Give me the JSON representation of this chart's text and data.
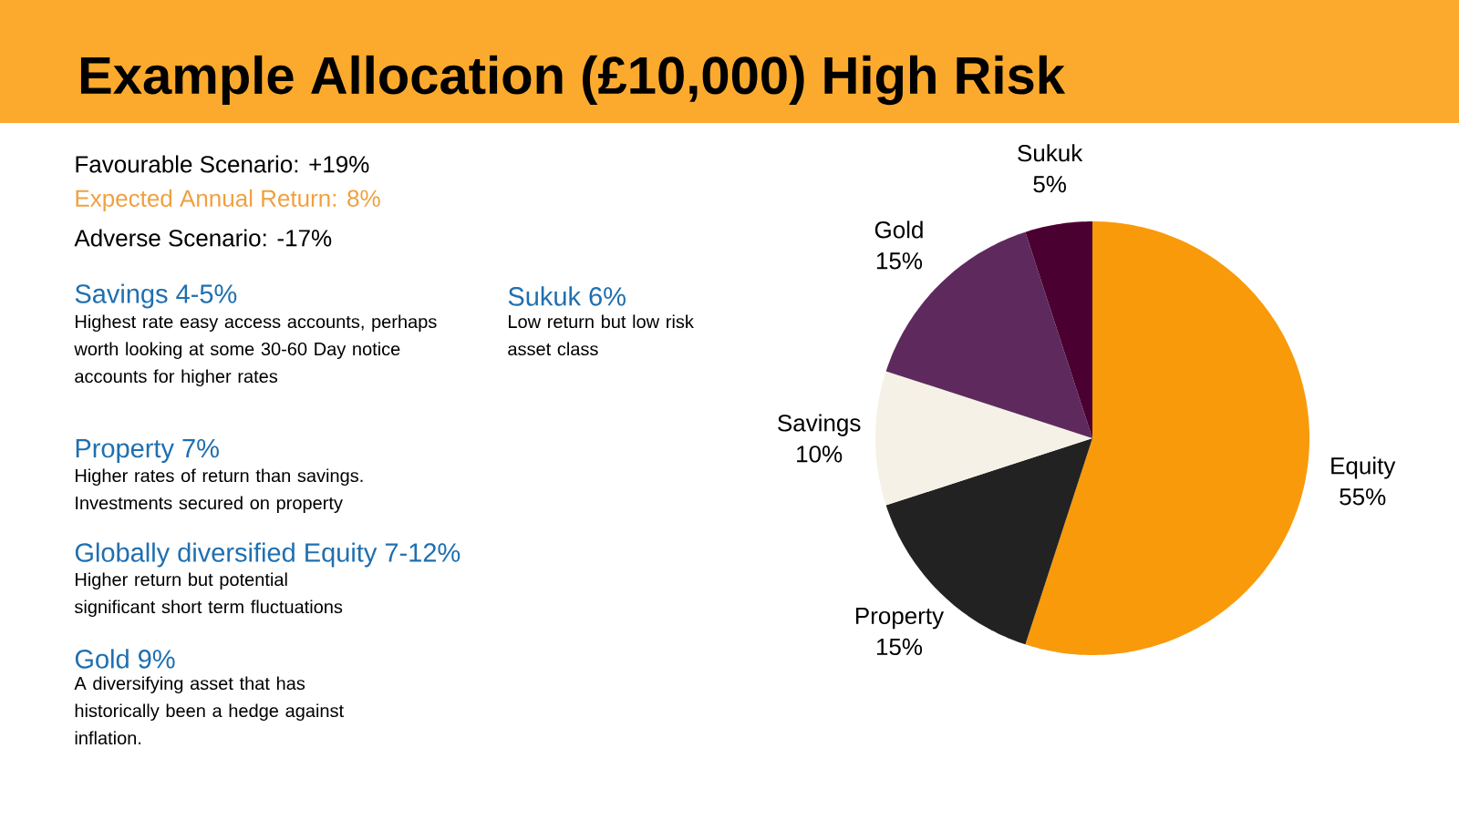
{
  "chart_data": {
    "type": "pie",
    "title": "Example Allocation (£10,000) High Risk",
    "categories": [
      "Equity",
      "Property",
      "Savings",
      "Gold",
      "Sukuk"
    ],
    "values": [
      55,
      15,
      10,
      15,
      5
    ],
    "value_labels": [
      "55%",
      "15%",
      "10%",
      "15%",
      "5%"
    ],
    "colors": [
      "#f99a0a",
      "#222222",
      "#f5f1e6",
      "#5e2a5e",
      "#4a0030"
    ],
    "annotations": [
      "Favourable Scenario: +19%",
      "Expected Annual Return: 8%",
      "Adverse Scenario: -17%",
      "Savings 4-5%",
      "Highest rate easy access accounts, perhaps worth looking at some 30-60 Day notice accounts for higher rates",
      "Property 7%",
      "Higher rates of return than savings. Investments secured on property",
      "Globally diversified Equity 7-12%",
      "Higher return but potential significant short term fluctuations",
      "Gold 9%",
      "A diversifying asset that has historically been a hedge against inflation.",
      "Sukuk 6%",
      "Low return but low risk asset class"
    ]
  }
}
